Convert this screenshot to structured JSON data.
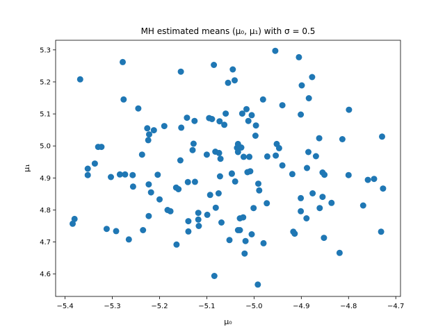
{
  "chart_data": {
    "type": "scatter",
    "title": "MH estimated means (μ₀, μ₁) with σ = 0.5",
    "xlabel": "μ₀",
    "ylabel": "μ₁",
    "xlim": [
      -5.42,
      -4.69
    ],
    "ylim": [
      4.53,
      5.33
    ],
    "xticks": [
      -5.4,
      -5.3,
      -5.2,
      -5.1,
      -5.0,
      -4.9,
      -4.8,
      -4.7
    ],
    "xtick_labels": [
      "−5.4",
      "−5.3",
      "−5.2",
      "−5.1",
      "−5.0",
      "−4.9",
      "−4.8",
      "−4.7"
    ],
    "yticks": [
      4.6,
      4.7,
      4.8,
      4.9,
      5.0,
      5.1,
      5.2,
      5.3
    ],
    "ytick_labels": [
      "4.6",
      "4.7",
      "4.8",
      "4.9",
      "5.0",
      "5.1",
      "5.2",
      "5.3"
    ],
    "grid": false,
    "marker_color": "#1f77b4",
    "points": [
      [
        -5.368,
        5.208
      ],
      [
        -5.278,
        5.262
      ],
      [
        -5.085,
        5.253
      ],
      [
        -4.955,
        5.297
      ],
      [
        -4.905,
        5.277
      ],
      [
        -5.155,
        5.232
      ],
      [
        -5.045,
        5.239
      ],
      [
        -5.041,
        5.205
      ],
      [
        -5.055,
        5.197
      ],
      [
        -4.877,
        5.215
      ],
      [
        -4.899,
        5.189
      ],
      [
        -5.276,
        5.145
      ],
      [
        -4.981,
        5.145
      ],
      [
        -4.884,
        5.149
      ],
      [
        -5.245,
        5.117
      ],
      [
        -5.016,
        5.115
      ],
      [
        -4.799,
        5.113
      ],
      [
        -4.94,
        5.127
      ],
      [
        -5.142,
        5.088
      ],
      [
        -5.095,
        5.087
      ],
      [
        -5.089,
        5.084
      ],
      [
        -5.126,
        5.078
      ],
      [
        -5.073,
        5.077
      ],
      [
        -5.025,
        5.101
      ],
      [
        -5.005,
        5.096
      ],
      [
        -5.06,
        5.101
      ],
      [
        -5.063,
        5.066
      ],
      [
        -5.012,
        5.078
      ],
      [
        -4.996,
        5.064
      ],
      [
        -4.901,
        5.098
      ],
      [
        -5.154,
        5.057
      ],
      [
        -5.19,
        5.062
      ],
      [
        -5.226,
        5.055
      ],
      [
        -5.212,
        5.049
      ],
      [
        -5.222,
        5.036
      ],
      [
        -5.224,
        5.018
      ],
      [
        -4.862,
        5.024
      ],
      [
        -4.813,
        5.021
      ],
      [
        -4.729,
        5.029
      ],
      [
        -5.33,
        4.997
      ],
      [
        -5.323,
        4.997
      ],
      [
        -5.237,
        4.973
      ],
      [
        -5.13,
        4.987
      ],
      [
        -5.128,
        5.007
      ],
      [
        -5.034,
        5.006
      ],
      [
        -5.036,
        4.994
      ],
      [
        -5.027,
        4.995
      ],
      [
        -4.997,
        5.032
      ],
      [
        -4.952,
        5.006
      ],
      [
        -4.947,
        4.993
      ],
      [
        -5.156,
        4.955
      ],
      [
        -5.1,
        4.973
      ],
      [
        -5.082,
        4.982
      ],
      [
        -5.074,
        4.978
      ],
      [
        -5.071,
        4.96
      ],
      [
        -5.047,
        4.914
      ],
      [
        -5.034,
        4.981
      ],
      [
        -5.022,
        4.966
      ],
      [
        -5.01,
        4.966
      ],
      [
        -4.972,
        4.967
      ],
      [
        -4.954,
        4.97
      ],
      [
        -4.94,
        4.939
      ],
      [
        -4.885,
        4.981
      ],
      [
        -4.869,
        4.968
      ],
      [
        -4.888,
        4.931
      ],
      [
        -5.337,
        4.945
      ],
      [
        -5.352,
        4.929
      ],
      [
        -5.352,
        4.909
      ],
      [
        -5.303,
        4.903
      ],
      [
        -5.284,
        4.911
      ],
      [
        -5.273,
        4.911
      ],
      [
        -5.257,
        4.909
      ],
      [
        -5.204,
        4.91
      ],
      [
        -5.223,
        4.88
      ],
      [
        -5.256,
        4.873
      ],
      [
        -5.218,
        4.855
      ],
      [
        -5.14,
        4.887
      ],
      [
        -5.125,
        4.888
      ],
      [
        -5.165,
        4.87
      ],
      [
        -5.16,
        4.865
      ],
      [
        -5.072,
        4.905
      ],
      [
        -5.047,
        4.913
      ],
      [
        -5.014,
        4.918
      ],
      [
        -5.04,
        4.889
      ],
      [
        -5.008,
        4.921
      ],
      [
        -4.991,
        4.882
      ],
      [
        -4.989,
        4.861
      ],
      [
        -4.919,
        4.912
      ],
      [
        -4.855,
        4.917
      ],
      [
        -4.851,
        4.91
      ],
      [
        -4.8,
        4.909
      ],
      [
        -4.759,
        4.894
      ],
      [
        -4.746,
        4.897
      ],
      [
        -4.727,
        4.867
      ],
      [
        -5.093,
        4.847
      ],
      [
        -5.075,
        4.852
      ],
      [
        -4.973,
        4.821
      ],
      [
        -4.901,
        4.837
      ],
      [
        -4.876,
        4.852
      ],
      [
        -4.855,
        4.841
      ],
      [
        -4.836,
        4.822
      ],
      [
        -4.861,
        4.806
      ],
      [
        -4.769,
        4.814
      ],
      [
        -5.2,
        4.833
      ],
      [
        -5.183,
        4.8
      ],
      [
        -5.177,
        4.796
      ],
      [
        -5.223,
        4.781
      ],
      [
        -5.118,
        4.791
      ],
      [
        -5.099,
        4.785
      ],
      [
        -5.081,
        4.807
      ],
      [
        -5.023,
        4.777
      ],
      [
        -5.03,
        4.774
      ],
      [
        -5.001,
        4.806
      ],
      [
        -4.901,
        4.796
      ],
      [
        -4.889,
        4.774
      ],
      [
        -5.38,
        4.772
      ],
      [
        -5.384,
        4.757
      ],
      [
        -5.312,
        4.741
      ],
      [
        -5.292,
        4.734
      ],
      [
        -5.235,
        4.737
      ],
      [
        -5.139,
        4.765
      ],
      [
        -5.118,
        4.77
      ],
      [
        -5.117,
        4.75
      ],
      [
        -5.069,
        4.761
      ],
      [
        -5.139,
        4.733
      ],
      [
        -5.034,
        4.737
      ],
      [
        -5.03,
        4.737
      ],
      [
        -5.052,
        4.706
      ],
      [
        -5.005,
        4.724
      ],
      [
        -4.917,
        4.732
      ],
      [
        -4.914,
        4.726
      ],
      [
        -4.731,
        4.732
      ],
      [
        -5.265,
        4.708
      ],
      [
        -5.164,
        4.692
      ],
      [
        -4.98,
        4.696
      ],
      [
        -5.018,
        4.703
      ],
      [
        -4.852,
        4.713
      ],
      [
        -5.02,
        4.664
      ],
      [
        -4.819,
        4.666
      ],
      [
        -5.084,
        4.594
      ],
      [
        -4.992,
        4.567
      ]
    ]
  }
}
